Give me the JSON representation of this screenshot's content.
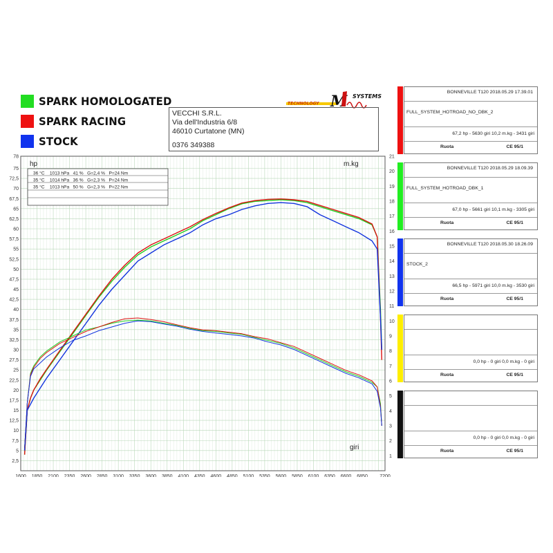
{
  "legend": [
    {
      "label": "SPARK HOMOLOGATED",
      "color": "#22dd22"
    },
    {
      "label": "SPARK RACING",
      "color": "#ee1111"
    },
    {
      "label": "STOCK",
      "color": "#1133ee"
    }
  ],
  "logo": {
    "brand": "MIVV",
    "text_technology": "TECHNOLOGY",
    "text_systems": "SYSTEMS"
  },
  "company": {
    "name": "VECCHI S.R.L.",
    "address": "Via dell'Industria 6/8",
    "city": "46010 Curtatone (MN)",
    "phone": "0376 349388"
  },
  "conditions": [
    "36 °C    1013 hPa   41 %   G=2,4 %   P=24 Nm",
    "35 °C    1014 hPa   36 %   G=2,3 %   P=24 Nm",
    "35 °C    1013 hPa   50 %   G=2,3 %   P=22 Nm"
  ],
  "chart_data": {
    "type": "line",
    "xlabel": "giri",
    "ylabel": "hp",
    "y2label": "m.kg",
    "xlim": [
      1600,
      7200
    ],
    "ylim": [
      0,
      78
    ],
    "y2lim": [
      0,
      21
    ],
    "x_ticks": [
      "1600",
      "1850",
      "2100",
      "2350",
      "2600",
      "2850",
      "3100",
      "3350",
      "3600",
      "3850",
      "4100",
      "4350",
      "4600",
      "4850",
      "5100",
      "5350",
      "5600",
      "5850",
      "6100",
      "6350",
      "6600",
      "6850",
      "7200"
    ],
    "y_ticks": [
      "2,5",
      "5",
      "7,5",
      "10",
      "12,5",
      "15",
      "17,5",
      "20",
      "22,5",
      "25",
      "27,5",
      "30",
      "32,5",
      "35",
      "37,5",
      "40",
      "42,5",
      "45",
      "47,5",
      "50",
      "52,5",
      "55",
      "57,5",
      "60",
      "62,5",
      "65",
      "67,5",
      "70",
      "72,5",
      "75",
      "78"
    ],
    "y2_ticks": [
      "1",
      "2",
      "3",
      "4",
      "5",
      "6",
      "7",
      "8",
      "9",
      "10",
      "11",
      "12",
      "13",
      "14",
      "15",
      "16",
      "17",
      "18",
      "19",
      "20",
      "21"
    ],
    "grid": true,
    "series": [
      {
        "name": "SPARK HOMOLOGATED",
        "quantity": "hp",
        "color": "#22cc22",
        "x": [
          1660,
          1700,
          1750,
          1800,
          1900,
          2000,
          2200,
          2400,
          2600,
          2800,
          3000,
          3200,
          3400,
          3600,
          3800,
          4000,
          4200,
          4400,
          4600,
          4800,
          5000,
          5200,
          5400,
          5600,
          5800,
          6000,
          6200,
          6400,
          6600,
          6800,
          7000,
          7080,
          7130,
          7150
        ],
        "y": [
          4,
          15,
          18,
          20,
          22.5,
          25,
          29.5,
          34,
          38.5,
          43,
          47,
          50.5,
          53.5,
          55.5,
          57,
          58.5,
          60,
          62,
          63.5,
          65,
          66.2,
          66.8,
          67,
          67.2,
          67,
          66.5,
          65.5,
          64.5,
          63.5,
          62.5,
          61,
          58,
          40,
          30
        ]
      },
      {
        "name": "SPARK RACING",
        "quantity": "hp",
        "color": "#dd1111",
        "x": [
          1660,
          1700,
          1750,
          1800,
          1900,
          2000,
          2200,
          2400,
          2600,
          2800,
          3000,
          3200,
          3400,
          3600,
          3800,
          4000,
          4200,
          4400,
          4600,
          4800,
          5000,
          5200,
          5400,
          5600,
          5800,
          6000,
          6200,
          6400,
          6600,
          6800,
          7000,
          7080,
          7130,
          7150
        ],
        "y": [
          4,
          15,
          18,
          20,
          22.8,
          25.2,
          29.8,
          34.3,
          38.8,
          43.3,
          47.5,
          51,
          54,
          56,
          57.5,
          59,
          60.5,
          62.3,
          63.8,
          65.2,
          66.4,
          67,
          67.3,
          67.4,
          67.2,
          66.8,
          65.8,
          64.8,
          63.8,
          62.8,
          61.2,
          58,
          38,
          27.5
        ]
      },
      {
        "name": "STOCK",
        "quantity": "hp",
        "color": "#1133dd",
        "x": [
          1660,
          1700,
          1750,
          1800,
          1900,
          2000,
          2200,
          2400,
          2600,
          2800,
          3000,
          3200,
          3400,
          3600,
          3800,
          4000,
          4200,
          4400,
          4600,
          4800,
          5000,
          5200,
          5400,
          5600,
          5800,
          6000,
          6200,
          6400,
          6600,
          6800,
          7000,
          7080,
          7130,
          7150
        ],
        "y": [
          5,
          15,
          16.5,
          18,
          20.5,
          23,
          27.5,
          32,
          36.5,
          41,
          45,
          48.5,
          52,
          54,
          56,
          57.5,
          59,
          61,
          62.5,
          63.5,
          64.8,
          65.7,
          66.3,
          66.5,
          66.3,
          65.5,
          63.5,
          62,
          60.5,
          59,
          57,
          55,
          38,
          30
        ]
      },
      {
        "name": "SPARK HOMOLOGATED",
        "quantity": "m.kg",
        "color": "#22cc22",
        "x": [
          1660,
          1700,
          1750,
          1800,
          1900,
          2000,
          2200,
          2400,
          2600,
          2800,
          3000,
          3200,
          3400,
          3600,
          3800,
          4000,
          4200,
          4400,
          4600,
          4800,
          5000,
          5200,
          5400,
          5600,
          5800,
          6000,
          6200,
          6400,
          6600,
          6800,
          7000,
          7080,
          7130,
          7150
        ],
        "y": [
          1.5,
          4.5,
          6.5,
          7,
          7.6,
          8,
          8.6,
          9,
          9.4,
          9.6,
          9.85,
          10,
          10.05,
          10,
          9.85,
          9.7,
          9.5,
          9.35,
          9.3,
          9.2,
          9.1,
          8.9,
          8.7,
          8.5,
          8.2,
          7.8,
          7.4,
          7,
          6.6,
          6.3,
          5.9,
          5.6,
          4.5,
          3
        ]
      },
      {
        "name": "SPARK RACING",
        "quantity": "m.kg",
        "color": "#dd1111",
        "x": [
          1660,
          1700,
          1750,
          1800,
          1900,
          2000,
          2200,
          2400,
          2600,
          2800,
          3000,
          3200,
          3400,
          3600,
          3800,
          4000,
          4200,
          4400,
          4600,
          4800,
          5000,
          5200,
          5400,
          5600,
          5800,
          6000,
          6200,
          6400,
          6600,
          6800,
          7000,
          7080,
          7130,
          7150
        ],
        "y": [
          1.5,
          4.5,
          6.4,
          6.9,
          7.5,
          7.9,
          8.5,
          8.9,
          9.3,
          9.6,
          9.9,
          10.15,
          10.2,
          10.1,
          9.95,
          9.75,
          9.55,
          9.4,
          9.35,
          9.25,
          9.15,
          8.95,
          8.8,
          8.55,
          8.3,
          7.9,
          7.5,
          7.1,
          6.7,
          6.4,
          6,
          5.6,
          4.3,
          3
        ]
      },
      {
        "name": "STOCK",
        "quantity": "m.kg",
        "color": "#1133dd",
        "x": [
          1660,
          1700,
          1750,
          1800,
          1900,
          2000,
          2200,
          2400,
          2600,
          2800,
          3000,
          3200,
          3400,
          3600,
          3800,
          4000,
          4200,
          4400,
          4600,
          4800,
          5000,
          5200,
          5400,
          5600,
          5800,
          6000,
          6200,
          6400,
          6600,
          6800,
          7000,
          7080,
          7130,
          7150
        ],
        "y": [
          1.5,
          4.5,
          6.3,
          6.8,
          7.2,
          7.6,
          8.2,
          8.7,
          9,
          9.35,
          9.6,
          9.85,
          10,
          9.95,
          9.8,
          9.65,
          9.45,
          9.3,
          9.2,
          9.1,
          9,
          8.85,
          8.6,
          8.4,
          8.1,
          7.7,
          7.3,
          6.9,
          6.5,
          6.2,
          5.8,
          5.3,
          4.2,
          3
        ]
      }
    ]
  },
  "panels": [
    {
      "color": "#ee1111",
      "title": "BONNEVILLE T120   2018.05.29 17.39.01",
      "name": "FULL_SYSTEM_HOTROAD_NO_DBK_2",
      "stats": "67,2 hp - 5630 giri      10,2 m.kg - 3431 giri",
      "ruota": "Ruota",
      "ce": "CE 95/1"
    },
    {
      "color": "#22ee22",
      "title": "BONNEVILLE T120   2018.05.29 18.09.39",
      "name": "FULL_SYSTEM_HOTROAD_DBK_1",
      "stats": "67,0 hp - 5661 giri      10,1 m.kg - 3305 giri",
      "ruota": "Ruota",
      "ce": "CE 95/1"
    },
    {
      "color": "#1133ee",
      "title": "BONNEVILLE T120   2018.05.30 18.26.09",
      "name": "STOCK_2",
      "stats": "66,5 hp - 5971 giri      10,0 m.kg - 3530 giri",
      "ruota": "Ruota",
      "ce": "CE 95/1"
    },
    {
      "color": "#ffee00",
      "title": "",
      "name": "",
      "stats": "0,0 hp - 0 giri      0,0 m.kg - 0 giri",
      "ruota": "Ruota",
      "ce": "CE 95/1"
    },
    {
      "color": "#111111",
      "title": "",
      "name": "",
      "stats": "0,0 hp - 0 giri      0,0 m.kg - 0 giri",
      "ruota": "Ruota",
      "ce": "CE 95/1"
    }
  ]
}
